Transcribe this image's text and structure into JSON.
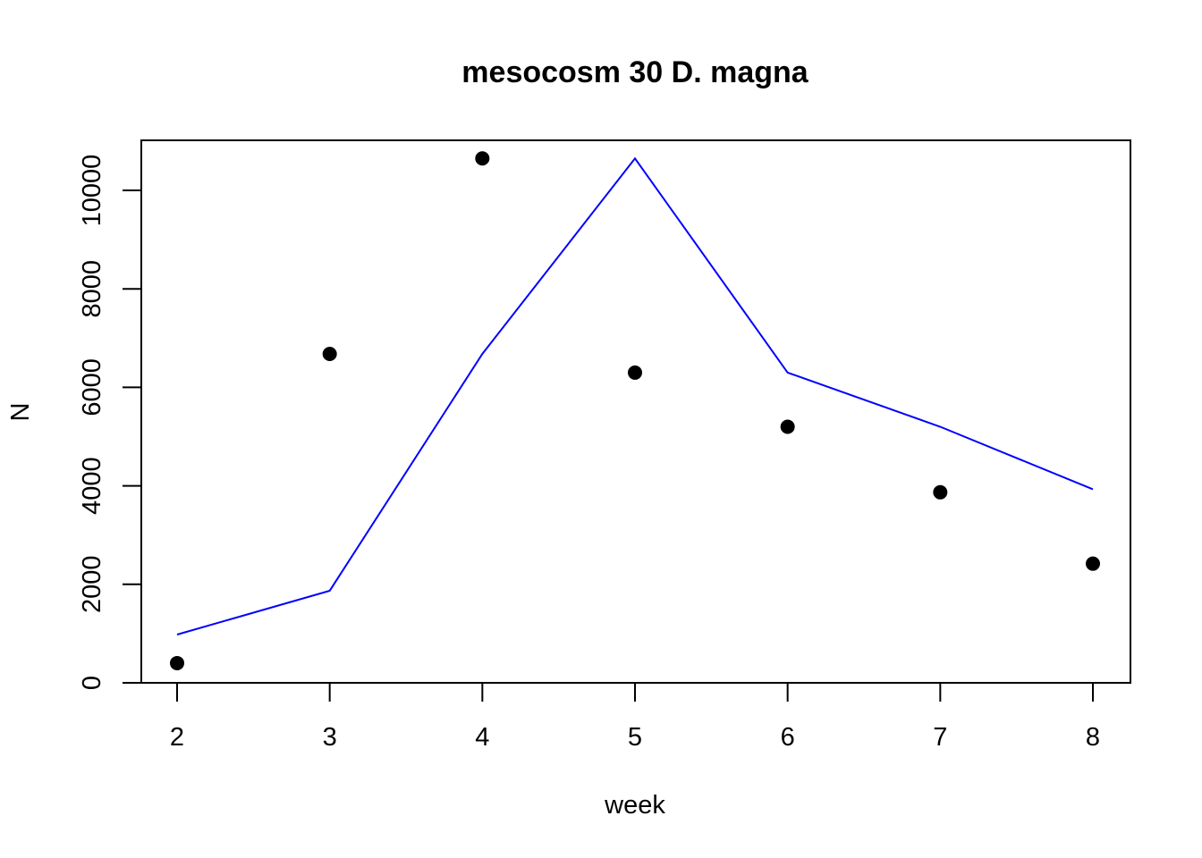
{
  "chart_data": {
    "type": "scatter",
    "title": "mesocosm 30 D. magna",
    "xlabel": "week",
    "ylabel": "N",
    "xlim": [
      2,
      8
    ],
    "ylim": [
      0,
      10600
    ],
    "x_ticks": [
      "2",
      "3",
      "4",
      "5",
      "6",
      "7",
      "8"
    ],
    "y_ticks": [
      "0",
      "2000",
      "4000",
      "6000",
      "8000",
      "10000"
    ],
    "grid": false,
    "legend": "none",
    "series": [
      {
        "kind": "points",
        "color": "#000000",
        "x": [
          2,
          3,
          4,
          5,
          6,
          7,
          8
        ],
        "y": [
          400,
          6680,
          10650,
          6300,
          5200,
          3870,
          2420
        ]
      },
      {
        "kind": "line",
        "color": "#0000ff",
        "x": [
          2,
          3,
          4,
          5,
          6,
          7,
          8
        ],
        "y": [
          980,
          1870,
          6680,
          10650,
          6300,
          5200,
          3930
        ]
      }
    ]
  }
}
